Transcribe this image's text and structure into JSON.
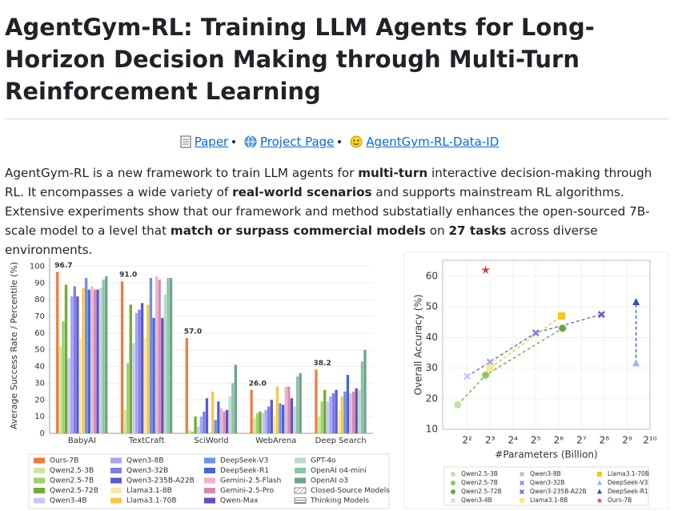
{
  "header": {
    "title": "AgentGym-RL: Training LLM Agents for Long-Horizon Decision Making through Multi-Turn Reinforcement Learning",
    "links": [
      "Paper",
      "Project Page",
      "AgentGym-RL-Data-ID"
    ]
  },
  "paragraph": [
    {
      "text": "AgentGym-RL is a new framework to train LLM agents for "
    },
    {
      "text": "multi-turn",
      "bold": true
    },
    {
      "text": " interactive decision-making through RL. It encompasses a wide variety of "
    },
    {
      "text": "real-world scenarios",
      "bold": true
    },
    {
      "text": " and supports mainstream RL algorithms. Extensive experiments show that our framework and method substatially enhances the open-sourced 7B-scale model to a level that "
    },
    {
      "text": "match or surpass commercial models",
      "bold": true
    },
    {
      "text": " on "
    },
    {
      "text": "27 tasks",
      "bold": true
    },
    {
      "text": " across diverse environments."
    }
  ],
  "bar_chart": {
    "type": "bar",
    "y_label": "Average Success Rate / Percentile (%)",
    "categories": [
      "BabyAI",
      "TextCraft",
      "SciWorld",
      "WebArena",
      "Deep Search"
    ],
    "ylim": [
      0,
      105
    ],
    "yticks": [
      0,
      10,
      20,
      30,
      40,
      50,
      60,
      70,
      80,
      90,
      100
    ],
    "grid": true,
    "series": [
      {
        "name": "Ours-7B",
        "color": "#f07d3c",
        "values": [
          96.7,
          91,
          57,
          26,
          38.2
        ],
        "value_labels": [
          "96.7",
          "91.0",
          "57.0",
          "26.0",
          "38.2"
        ]
      },
      {
        "name": "Qwen2.5-3B",
        "color": "#cbe6a3",
        "values": [
          52,
          14,
          2,
          9,
          10
        ]
      },
      {
        "name": "Qwen2.5-7B",
        "color": "#9ed26a",
        "values": [
          67,
          42,
          1,
          12,
          19
        ]
      },
      {
        "name": "Qwen2.5-72B",
        "color": "#6fae2f",
        "values": [
          89,
          77,
          10,
          13,
          26
        ]
      },
      {
        "name": "Qwen3-4B",
        "color": "#c9c9f6",
        "values": [
          45,
          54,
          4,
          12,
          19
        ]
      },
      {
        "name": "Qwen3-8B",
        "color": "#a6a6f0",
        "values": [
          82,
          72,
          10,
          14,
          22
        ]
      },
      {
        "name": "Qwen3-32B",
        "color": "#7d7de6",
        "values": [
          88,
          74,
          13,
          16,
          24
        ]
      },
      {
        "name": "Qwen3-235B-A22B",
        "color": "#5a5ad6",
        "values": [
          82,
          78,
          21,
          20,
          26
        ]
      },
      {
        "name": "Llama3.1-8B",
        "color": "#fbe9a6",
        "values": [
          57,
          57,
          1,
          10,
          14
        ]
      },
      {
        "name": "Llama3.1-70B",
        "color": "#f7c843",
        "values": [
          87,
          77,
          25,
          28,
          22
        ]
      },
      {
        "name": "DeepSeek-V3",
        "color": "#6c8ff0",
        "values": [
          93,
          93,
          8,
          18,
          25
        ]
      },
      {
        "name": "DeepSeek-R1",
        "color": "#4666d8",
        "values": [
          86,
          69,
          19,
          17,
          35
        ]
      },
      {
        "name": "Gemini-2.5-Flash",
        "color": "#e9b6cf",
        "values": [
          88,
          94,
          15,
          28,
          24
        ]
      },
      {
        "name": "Gemini-2.5-Pro",
        "color": "#d98aae",
        "values": [
          86,
          92,
          13,
          28,
          25
        ]
      },
      {
        "name": "Qwen-Max",
        "color": "#6b4bc8",
        "values": [
          86,
          69,
          14,
          21,
          27
        ]
      },
      {
        "name": "GPT-4o",
        "color": "#b7dcc8",
        "values": [
          87,
          83,
          22,
          16,
          26
        ]
      },
      {
        "name": "OpenAI o4-mini",
        "color": "#8fc2a6",
        "values": [
          92,
          93,
          30,
          34,
          43
        ]
      },
      {
        "name": "OpenAI o3",
        "color": "#6aa58a",
        "values": [
          94,
          93,
          41,
          36,
          50
        ]
      }
    ],
    "pattern_legend": [
      "Closed-Source Models",
      "Thinking Models"
    ]
  },
  "scatter_chart": {
    "type": "scatter",
    "x_label": "#Parameters (Billion)",
    "y_label": "Overall Accuracy (%)",
    "x_scale": "log",
    "xlim": [
      1.9,
      1024
    ],
    "xticks": [
      {
        "value": 4,
        "label": "2²"
      },
      {
        "value": 8,
        "label": "2³"
      },
      {
        "value": 16,
        "label": "2⁴"
      },
      {
        "value": 32,
        "label": "2⁵"
      },
      {
        "value": 64,
        "label": "2⁶"
      },
      {
        "value": 128,
        "label": "2⁷"
      },
      {
        "value": 256,
        "label": "2⁸"
      },
      {
        "value": 512,
        "label": "2⁹"
      },
      {
        "value": 1024,
        "label": "2¹⁰"
      }
    ],
    "ylim": [
      10,
      65.2
    ],
    "yticks": [
      10,
      20,
      30,
      40,
      50,
      60
    ],
    "grid": true,
    "series": [
      {
        "name": "Qwen2.5-3B",
        "color": "#c5e0a5",
        "marker": "circle",
        "x": [
          3
        ],
        "values": [
          18
        ]
      },
      {
        "name": "Qwen2.5-7B",
        "color": "#8fc85a",
        "marker": "circle",
        "x": [
          7
        ],
        "values": [
          27.7
        ]
      },
      {
        "name": "Qwen2.5-72B",
        "color": "#6aa83a",
        "marker": "circle",
        "x": [
          72
        ],
        "values": [
          43
        ]
      },
      {
        "name": "Qwen3-4B",
        "color": "#c8c8f5",
        "marker": "cross",
        "x": [
          4
        ],
        "values": [
          27.3
        ]
      },
      {
        "name": "Qwen3-8B",
        "color": "#a8a8ee",
        "marker": "cross",
        "x": [
          8
        ],
        "values": [
          32
        ]
      },
      {
        "name": "Qwen3-32B",
        "color": "#8080e0",
        "marker": "cross",
        "x": [
          32
        ],
        "values": [
          41.5
        ]
      },
      {
        "name": "Qwen3-235B-A22B",
        "color": "#6060d0",
        "marker": "cross",
        "x": [
          235
        ],
        "values": [
          47.5
        ]
      },
      {
        "name": "Llama3.1-8B",
        "color": "#fde68a",
        "marker": "square",
        "x": [
          8
        ],
        "values": [
          30
        ]
      },
      {
        "name": "Llama3.1-70B",
        "color": "#f5c518",
        "marker": "square",
        "x": [
          70
        ],
        "values": [
          47
        ]
      },
      {
        "name": "DeepSeek-V3",
        "color": "#9bb5f0",
        "marker": "triangle",
        "x": [
          671
        ],
        "values": [
          31.5
        ]
      },
      {
        "name": "DeepSeek-R1",
        "color": "#2f4fc8",
        "marker": "triangle",
        "x": [
          671
        ],
        "values": [
          51.5
        ]
      },
      {
        "name": "Ours-7B",
        "color": "#e63232",
        "marker": "star",
        "x": [
          7
        ],
        "values": [
          62
        ]
      }
    ],
    "connect": [
      [
        0,
        1,
        2
      ],
      [
        3,
        4,
        5,
        6
      ],
      [
        7,
        8
      ],
      [
        9,
        10
      ]
    ]
  }
}
